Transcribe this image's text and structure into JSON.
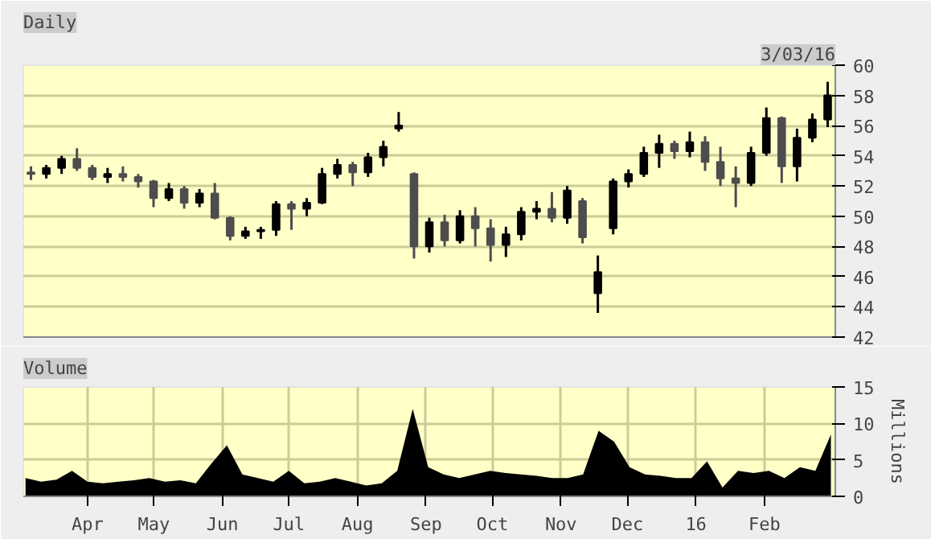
{
  "chart_data": [
    {
      "type": "candlestick",
      "title": "Daily",
      "annotations": [
        "3/03/16"
      ],
      "colors": [
        "#4d4d4d",
        "#000000",
        "#000000",
        "#4d4d4d",
        "#4d4d4d",
        "#000000",
        "#4d4d4d",
        "#4d4d4d",
        "#4d4d4d",
        "#000000",
        "#4d4d4d",
        "#000000",
        "#4d4d4d",
        "#4d4d4d",
        "#000000",
        "#000000",
        "#000000",
        "#4d4d4d",
        "#000000",
        "#000000",
        "#000000",
        "#4d4d4d",
        "#000000",
        "#000000",
        "#000000",
        "#4d4d4d",
        "#000000",
        "#4d4d4d",
        "#000000",
        "#4d4d4d",
        "#4d4d4d",
        "#000000",
        "#000000",
        "#000000",
        "#4d4d4d",
        "#000000",
        "#4d4d4d",
        "#000000",
        "#000000",
        "#000000",
        "#000000",
        "#000000",
        "#4d4d4d",
        "#000000",
        "#4d4d4d",
        "#4d4d4d",
        "#4d4d4d",
        "#000000",
        "#000000",
        "#4d4d4d",
        "#000000",
        "#000000",
        "#000000"
      ],
      "categories": [
        null,
        null,
        null,
        null,
        null,
        null,
        null,
        null,
        null,
        null,
        null,
        null,
        null,
        null,
        null,
        null,
        null,
        null,
        null,
        null,
        null,
        null,
        null,
        null,
        null,
        null,
        null,
        null,
        null,
        null,
        null,
        null,
        null,
        null,
        null,
        null,
        null,
        null,
        null,
        null,
        null,
        null,
        null,
        null,
        null,
        null,
        null,
        null,
        null,
        null,
        null,
        null,
        null
      ],
      "ohlc": [
        [
          52.9,
          53.3,
          52.4,
          52.8
        ],
        [
          52.8,
          53.4,
          52.5,
          53.2
        ],
        [
          53.2,
          54.0,
          52.8,
          53.8
        ],
        [
          53.8,
          54.5,
          53.0,
          53.2
        ],
        [
          53.2,
          53.4,
          52.4,
          52.6
        ],
        [
          52.6,
          53.2,
          52.2,
          52.8
        ],
        [
          52.8,
          53.3,
          52.3,
          52.6
        ],
        [
          52.6,
          52.8,
          51.9,
          52.3
        ],
        [
          52.3,
          52.4,
          50.6,
          51.2
        ],
        [
          51.2,
          52.2,
          51.0,
          51.8
        ],
        [
          51.8,
          52.0,
          50.5,
          50.9
        ],
        [
          50.9,
          51.8,
          50.6,
          51.5
        ],
        [
          51.5,
          52.2,
          49.8,
          49.9
        ],
        [
          49.9,
          50.0,
          48.4,
          48.7
        ],
        [
          48.7,
          49.3,
          48.5,
          49.0
        ],
        [
          49.0,
          49.3,
          48.5,
          49.1
        ],
        [
          49.1,
          51.0,
          48.7,
          50.8
        ],
        [
          50.8,
          51.0,
          49.1,
          50.5
        ],
        [
          50.5,
          51.2,
          50.0,
          50.9
        ],
        [
          50.9,
          53.2,
          50.8,
          52.8
        ],
        [
          52.8,
          53.8,
          52.5,
          53.4
        ],
        [
          53.4,
          53.6,
          52.0,
          52.9
        ],
        [
          52.9,
          54.2,
          52.6,
          53.9
        ],
        [
          53.9,
          55.0,
          53.3,
          54.6
        ],
        [
          55.8,
          56.9,
          55.6,
          56.0
        ],
        [
          52.8,
          52.9,
          47.2,
          48.0
        ],
        [
          48.0,
          49.9,
          47.6,
          49.6
        ],
        [
          49.6,
          50.1,
          48.0,
          48.4
        ],
        [
          48.4,
          50.4,
          48.2,
          50.0
        ],
        [
          50.0,
          50.6,
          48.0,
          49.2
        ],
        [
          49.2,
          49.8,
          47.0,
          48.1
        ],
        [
          48.1,
          49.3,
          47.3,
          48.8
        ],
        [
          48.8,
          50.6,
          48.4,
          50.3
        ],
        [
          50.3,
          51.0,
          49.8,
          50.5
        ],
        [
          50.5,
          51.6,
          49.6,
          49.9
        ],
        [
          49.9,
          52.0,
          49.5,
          51.7
        ],
        [
          51.0,
          51.2,
          48.2,
          48.6
        ],
        [
          44.9,
          47.4,
          43.6,
          46.3
        ],
        [
          49.2,
          52.5,
          48.8,
          52.3
        ],
        [
          52.3,
          53.1,
          51.9,
          52.8
        ],
        [
          52.8,
          54.6,
          52.6,
          54.2
        ],
        [
          54.2,
          55.4,
          53.2,
          54.8
        ],
        [
          54.8,
          55.0,
          53.8,
          54.3
        ],
        [
          54.3,
          55.6,
          53.9,
          54.9
        ],
        [
          54.9,
          55.3,
          53.0,
          53.6
        ],
        [
          53.6,
          54.6,
          52.0,
          52.5
        ],
        [
          52.5,
          53.3,
          50.6,
          52.2
        ],
        [
          52.2,
          54.6,
          52.0,
          54.2
        ],
        [
          54.2,
          57.2,
          54.0,
          56.5
        ],
        [
          56.5,
          56.6,
          52.2,
          53.3
        ],
        [
          53.3,
          55.8,
          52.3,
          55.2
        ],
        [
          55.2,
          56.8,
          54.9,
          56.4
        ],
        [
          56.4,
          58.9,
          55.9,
          58.0
        ]
      ],
      "ylim": [
        42,
        60
      ],
      "yticks": [
        42,
        44,
        46,
        48,
        50,
        52,
        54,
        56,
        58,
        60
      ],
      "grid": "y",
      "tick_labels": "y"
    },
    {
      "type": "area",
      "title": "Volume",
      "ylabel": "Millions",
      "x": [
        "2015-03-04",
        "2015-03-11",
        "2015-03-18",
        "2015-03-25",
        "2015-04-01",
        "2015-04-08",
        "2015-04-15",
        "2015-04-22",
        "2015-04-29",
        "2015-05-06",
        "2015-05-13",
        "2015-05-20",
        "2015-05-27",
        "2015-06-03",
        "2015-06-10",
        "2015-06-17",
        "2015-06-24",
        "2015-07-01",
        "2015-07-08",
        "2015-07-15",
        "2015-07-22",
        "2015-07-29",
        "2015-08-05",
        "2015-08-12",
        "2015-08-19",
        "2015-08-26",
        "2015-09-02",
        "2015-09-09",
        "2015-09-16",
        "2015-09-23",
        "2015-09-30",
        "2015-10-07",
        "2015-10-14",
        "2015-10-21",
        "2015-10-28",
        "2015-11-04",
        "2015-11-11",
        "2015-11-18",
        "2015-11-25",
        "2015-12-02",
        "2015-12-09",
        "2015-12-16",
        "2015-12-23",
        "2015-12-30",
        "2016-01-06",
        "2016-01-13",
        "2016-01-20",
        "2016-01-27",
        "2016-02-03",
        "2016-02-10",
        "2016-02-17",
        "2016-02-24",
        "2016-03-02"
      ],
      "series": [
        {
          "color": "#000000",
          "values": [
            2.5,
            2.0,
            2.3,
            3.5,
            2.0,
            1.8,
            2.0,
            2.2,
            2.5,
            2.0,
            2.2,
            1.8,
            4.5,
            7.0,
            3.0,
            2.5,
            2.0,
            3.5,
            1.8,
            2.0,
            2.5,
            2.0,
            1.5,
            1.8,
            3.5,
            12.0,
            4.0,
            3.0,
            2.5,
            3.0,
            3.5,
            3.2,
            3.0,
            2.8,
            2.5,
            2.5,
            3.0,
            9.0,
            7.5,
            4.0,
            3.0,
            2.8,
            2.5,
            2.5,
            4.8,
            1.2,
            3.5,
            3.2,
            3.5,
            2.5,
            4.0,
            3.5,
            8.5
          ]
        }
      ],
      "xlim": [
        "2015-03-03",
        "2016-03-04"
      ],
      "xticks": [
        {
          "value": "2015-04-01",
          "label": "Apr"
        },
        {
          "value": "2015-05-01",
          "label": "May"
        },
        {
          "value": "2015-06-01",
          "label": "Jun"
        },
        {
          "value": "2015-07-01",
          "label": "Jul"
        },
        {
          "value": "2015-08-01",
          "label": "Aug"
        },
        {
          "value": "2015-09-01",
          "label": "Sep"
        },
        {
          "value": "2015-10-01",
          "label": "Oct"
        },
        {
          "value": "2015-11-01",
          "label": "Nov"
        },
        {
          "value": "2015-12-01",
          "label": "Dec"
        },
        {
          "value": "2016-01-01",
          "label": "16"
        },
        {
          "value": "2016-02-01",
          "label": "Feb"
        }
      ],
      "ylim": [
        0,
        15
      ],
      "yticks": [
        0,
        5,
        10,
        15
      ],
      "grid": true
    }
  ]
}
